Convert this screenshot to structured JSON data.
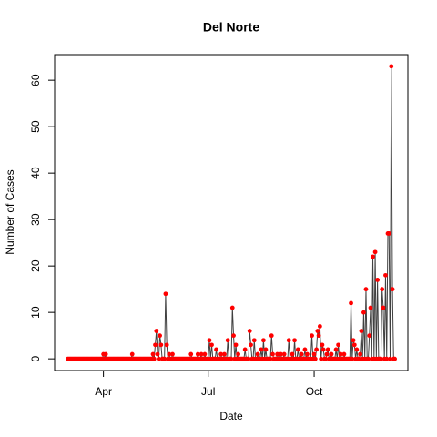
{
  "chart_data": {
    "type": "line",
    "title": "Del Norte",
    "xlabel": "Date",
    "ylabel": "Number of Cases",
    "x": [
      0,
      1,
      2,
      3,
      4,
      5,
      6,
      7,
      8,
      9,
      10,
      11,
      12,
      13,
      14,
      15,
      16,
      17,
      18,
      19,
      20,
      21,
      22,
      23,
      24,
      25,
      26,
      27,
      28,
      29,
      30,
      31,
      32,
      33,
      34,
      35,
      36,
      37,
      38,
      39,
      40,
      41,
      42,
      43,
      44,
      45,
      46,
      47,
      48,
      49,
      50,
      51,
      52,
      53,
      54,
      55,
      56,
      57,
      58,
      59,
      60,
      61,
      62,
      63,
      64,
      65,
      66,
      67,
      68,
      69,
      70,
      71,
      72,
      73,
      74,
      75,
      76,
      77,
      78,
      79,
      80,
      81,
      82,
      83,
      84,
      85,
      86,
      87,
      88,
      89,
      90,
      91,
      92,
      93,
      94,
      95,
      96,
      97,
      98,
      99,
      100,
      101,
      102,
      103,
      104,
      105,
      106,
      107,
      108,
      109,
      110,
      111,
      112,
      113,
      114,
      115,
      116,
      117,
      118,
      119,
      120,
      121,
      122,
      123,
      124,
      125,
      126,
      127,
      128,
      129,
      130,
      131,
      132,
      133,
      134,
      135,
      136,
      137,
      138,
      139,
      140,
      141,
      142,
      143,
      144,
      145,
      146,
      147,
      148,
      149,
      150,
      151,
      152,
      153,
      154,
      155,
      156,
      157,
      158,
      159,
      160,
      161,
      162,
      163,
      164,
      165,
      166,
      167,
      168,
      169,
      170,
      171,
      172,
      173,
      174,
      175,
      176,
      177,
      178,
      179,
      180,
      181,
      182,
      183,
      184,
      185,
      186,
      187,
      188,
      189,
      190,
      191,
      192,
      193,
      194,
      195,
      196,
      197,
      198,
      199,
      200,
      201,
      202,
      203,
      204,
      205,
      206,
      207,
      208,
      209,
      210,
      211,
      212,
      213,
      214,
      215,
      216,
      217,
      218,
      219,
      220,
      221,
      222,
      223,
      224,
      225,
      226,
      227,
      228,
      229,
      230,
      231,
      232,
      233,
      234,
      235,
      236,
      237,
      238,
      239,
      240,
      241,
      242,
      243,
      244,
      245,
      246,
      247,
      248,
      249,
      250,
      251,
      252,
      253,
      254,
      255,
      256,
      257,
      258,
      259,
      260,
      261,
      262,
      263,
      264,
      265,
      266,
      267,
      268,
      269,
      270,
      271,
      272,
      273,
      274,
      275,
      276,
      277,
      278,
      279,
      280,
      281,
      282,
      283,
      284
    ],
    "series": [
      {
        "color": "#ff0000",
        "line_color": "#404040",
        "values": [
          0,
          0,
          0,
          0,
          0,
          0,
          0,
          0,
          0,
          0,
          0,
          0,
          0,
          0,
          0,
          0,
          0,
          0,
          0,
          0,
          0,
          0,
          0,
          0,
          0,
          0,
          0,
          0,
          0,
          0,
          0,
          1,
          0,
          1,
          0,
          0,
          0,
          0,
          0,
          0,
          0,
          0,
          0,
          0,
          0,
          0,
          0,
          0,
          0,
          0,
          0,
          0,
          0,
          0,
          0,
          0,
          1,
          0,
          0,
          0,
          0,
          0,
          0,
          0,
          0,
          0,
          0,
          0,
          0,
          0,
          0,
          0,
          0,
          0,
          1,
          0,
          3,
          6,
          1,
          0,
          5,
          3,
          0,
          0,
          0,
          14,
          3,
          0,
          1,
          0,
          0,
          1,
          0,
          0,
          0,
          0,
          0,
          0,
          0,
          0,
          0,
          0,
          0,
          0,
          0,
          0,
          0,
          1,
          0,
          0,
          0,
          0,
          0,
          1,
          0,
          0,
          1,
          0,
          0,
          1,
          0,
          0,
          0,
          4,
          0,
          3,
          0,
          0,
          0,
          2,
          0,
          0,
          0,
          1,
          0,
          0,
          1,
          0,
          0,
          4,
          0,
          0,
          0,
          11,
          5,
          0,
          3,
          0,
          1,
          0,
          0,
          0,
          0,
          0,
          2,
          0,
          0,
          0,
          6,
          3,
          0,
          0,
          4,
          0,
          0,
          1,
          0,
          0,
          2,
          0,
          4,
          0,
          2,
          0,
          0,
          0,
          0,
          5,
          1,
          0,
          0,
          0,
          1,
          0,
          0,
          1,
          0,
          0,
          1,
          0,
          0,
          0,
          4,
          0,
          0,
          1,
          0,
          4,
          0,
          0,
          2,
          0,
          0,
          1,
          0,
          0,
          2,
          0,
          1,
          0,
          0,
          0,
          5,
          0,
          1,
          0,
          2,
          6,
          5,
          7,
          0,
          3,
          2,
          0,
          0,
          1,
          2,
          0,
          0,
          1,
          0,
          0,
          0,
          2,
          0,
          3,
          0,
          1,
          0,
          0,
          1,
          0,
          0,
          0,
          0,
          0,
          12,
          0,
          4,
          3,
          0,
          2,
          0,
          0,
          1,
          6,
          0,
          10,
          0,
          15,
          0,
          0,
          5,
          11,
          0,
          22,
          0,
          23,
          0,
          17,
          0,
          0,
          0,
          15,
          11,
          0,
          18,
          0,
          27,
          27,
          0,
          63,
          15,
          0,
          0
        ]
      }
    ],
    "xlim": [
      -11.4,
      295.4
    ],
    "xticks": [
      {
        "value": 31,
        "label": "Apr"
      },
      {
        "value": 122,
        "label": "Jul"
      },
      {
        "value": 214,
        "label": "Oct"
      }
    ],
    "ylim": [
      -2.52,
      65.52
    ],
    "yticks": [
      0,
      10,
      20,
      30,
      40,
      50,
      60
    ],
    "grid": false
  }
}
